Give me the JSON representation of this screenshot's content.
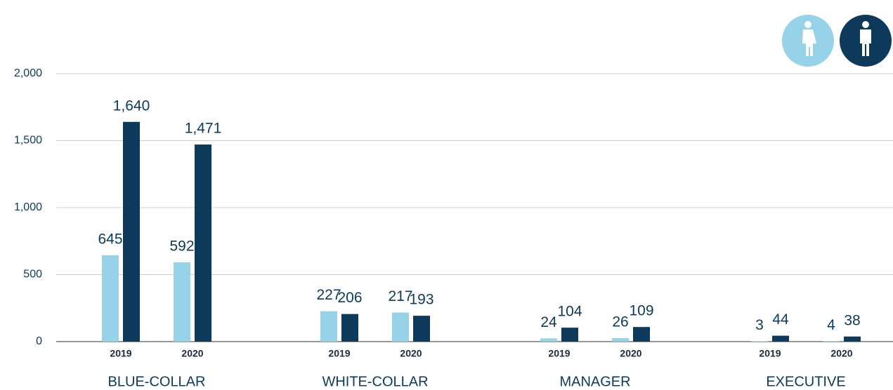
{
  "chart_data": {
    "type": "bar",
    "groups": [
      "BLUE-COLLAR",
      "WHITE-COLLAR",
      "MANAGER",
      "EXECUTIVE"
    ],
    "categories": [
      "2019",
      "2020",
      "2019",
      "2020",
      "2019",
      "2020",
      "2019",
      "2020"
    ],
    "series": [
      {
        "color": "#96d3e8",
        "values": [
          645,
          592,
          227,
          217,
          24,
          26,
          3,
          4
        ],
        "value_labels": [
          "645",
          "592",
          "227",
          "217",
          "24",
          "26",
          "3",
          "4"
        ]
      },
      {
        "color": "#0d3a5a",
        "values": [
          1640,
          1471,
          206,
          193,
          104,
          109,
          44,
          38
        ],
        "value_labels": [
          "1,640",
          "1,471",
          "206",
          "193",
          "104",
          "109",
          "44",
          "38"
        ]
      }
    ],
    "ylim": [
      0,
      2000
    ],
    "yticks": [
      0,
      500,
      {
        "value": 1000,
        "label": "1,000"
      },
      {
        "value": 1500,
        "label": "1,500"
      },
      {
        "value": 2000,
        "label": "2,000"
      }
    ],
    "grid": true
  }
}
